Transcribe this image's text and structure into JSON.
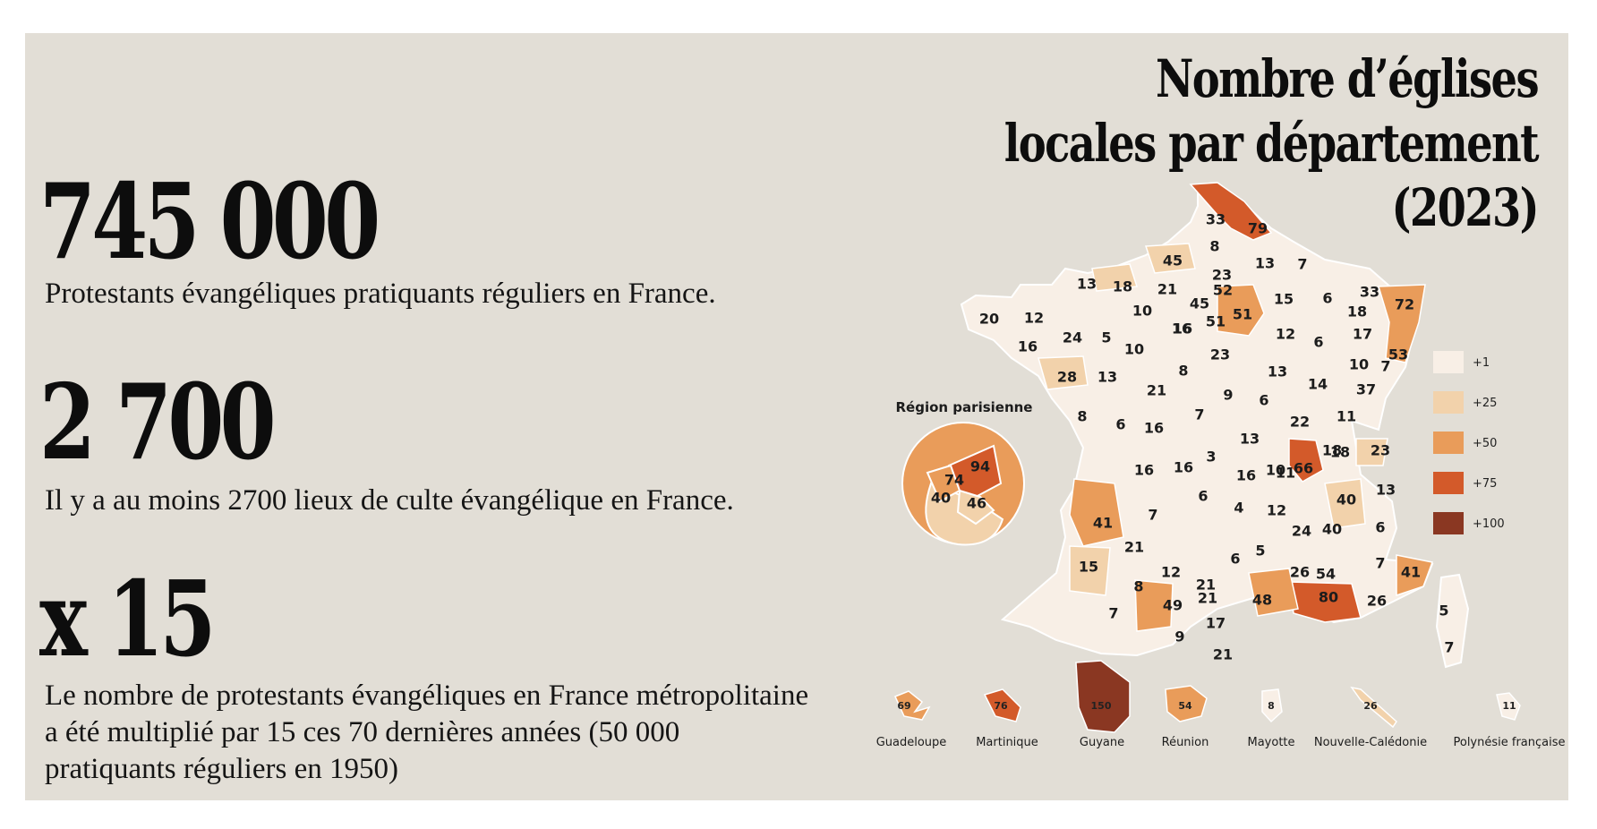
{
  "stats": [
    {
      "value": "745 000",
      "caption": "Protestants évangéliques pratiquants réguliers en France."
    },
    {
      "value": "2 700",
      "caption": "Il y a au moins 2700 lieux de culte évangélique en France."
    },
    {
      "value": "x 15",
      "caption": "Le nombre de protestants évangéliques en France métropolitaine a été multiplié par 15 ces 70 dernières années (50 000 pratiquants réguliers en 1950)"
    }
  ],
  "map": {
    "title": "Nombre d’églises locales par département (2023)",
    "legend": [
      {
        "label": "+1",
        "color": "#f8efe6"
      },
      {
        "label": "+25",
        "color": "#f2d2ab"
      },
      {
        "label": "+50",
        "color": "#e99c5a"
      },
      {
        "label": "+75",
        "color": "#d35a2a"
      },
      {
        "label": "+100",
        "color": "#8a3722"
      }
    ],
    "region_parisienne": {
      "title": "Région parisienne",
      "values": [
        "94",
        "74",
        "40",
        "46"
      ]
    },
    "departments": [
      "33",
      "79",
      "8",
      "45",
      "13",
      "7",
      "23",
      "52",
      "21",
      "18",
      "13",
      "45",
      "51",
      "51",
      "10",
      "16",
      "15",
      "6",
      "33",
      "72",
      "18",
      "20",
      "12",
      "24",
      "5",
      "16",
      "10",
      "12",
      "6",
      "17",
      "23",
      "16",
      "53",
      "10",
      "7",
      "28",
      "13",
      "8",
      "13",
      "14",
      "21",
      "37",
      "9",
      "7",
      "6",
      "8",
      "6",
      "16",
      "22",
      "11",
      "13",
      "3",
      "18",
      "23",
      "66",
      "16",
      "10",
      "11",
      "16",
      "16",
      "18",
      "6",
      "4",
      "12",
      "40",
      "13",
      "41",
      "7",
      "40",
      "24",
      "6",
      "21",
      "5",
      "7",
      "41",
      "15",
      "12",
      "6",
      "21",
      "26",
      "54",
      "8",
      "80",
      "26",
      "21",
      "7",
      "49",
      "48",
      "9",
      "17",
      "21",
      "5",
      "7"
    ],
    "overseas": [
      {
        "name": "Guadeloupe",
        "value": "69",
        "color": "#e99c5a"
      },
      {
        "name": "Martinique",
        "value": "76",
        "color": "#d35a2a"
      },
      {
        "name": "Guyane",
        "value": "150",
        "color": "#8a3722"
      },
      {
        "name": "Réunion",
        "value": "54",
        "color": "#e99c5a"
      },
      {
        "name": "Mayotte",
        "value": "8",
        "color": "#f8efe6"
      },
      {
        "name": "Nouvelle-Calédonie",
        "value": "26",
        "color": "#f2d2ab"
      },
      {
        "name": "Polynésie française",
        "value": "11",
        "color": "#f8efe6"
      }
    ]
  }
}
